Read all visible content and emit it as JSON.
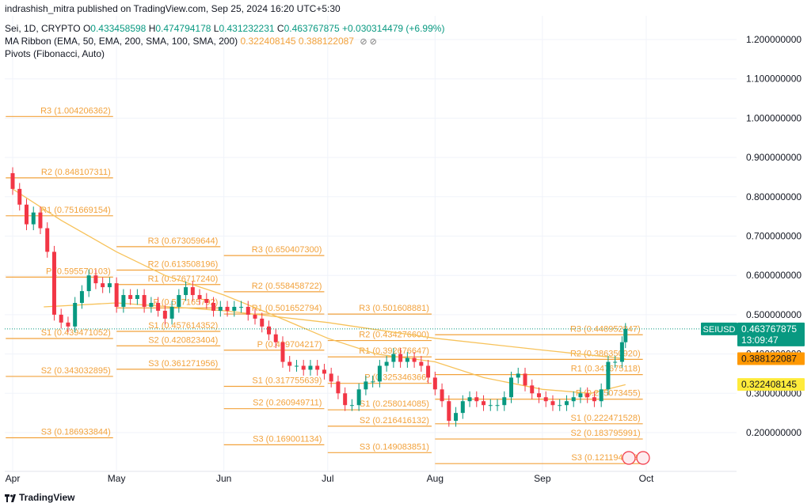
{
  "publisher_line": "indrashish_mitra published on TradingView.com, Sep 25, 2024 16:20 UTC+5:30",
  "legend": {
    "symbol_line": {
      "name": "Sei, 1D, CRYPTO",
      "o_label": "O",
      "o": "0.433458598",
      "h_label": "H",
      "h": "0.474794178",
      "l_label": "L",
      "l": "0.431232231",
      "c_label": "C",
      "c": "0.463767875",
      "change": "+0.030314479 (+6.99%)"
    },
    "ribbon_line": {
      "name": "MA Ribbon (EMA, 50, EMA, 200, SMA, 100, SMA, 200)",
      "v1": "0.322408145",
      "v2": "0.388122087",
      "eye": "⊘ ⊘"
    },
    "pivots_line": {
      "name": "Pivots (Fibonacci, Auto)"
    }
  },
  "footer": {
    "brand": "TradingView"
  },
  "colors": {
    "up": "#089981",
    "down": "#f23645",
    "pivot": "#f2a23c",
    "ma": "#f7c25a",
    "grid": "#f0f3fa",
    "axis_text": "#131722",
    "price_badge": "#089981",
    "badge_orange": "#ff9800",
    "badge_yellow": "#ffeb3b",
    "dotted": "#089981"
  },
  "chart_data": {
    "type": "candlestick",
    "title": "Sei, 1D, CRYPTO",
    "y_ticks": [
      {
        "v": 1.2,
        "label": "1.200000000"
      },
      {
        "v": 1.1,
        "label": "1.100000000"
      },
      {
        "v": 1.0,
        "label": "1.000000000"
      },
      {
        "v": 0.9,
        "label": "0.900000000"
      },
      {
        "v": 0.8,
        "label": "0.800000000"
      },
      {
        "v": 0.7,
        "label": "0.700000000"
      },
      {
        "v": 0.6,
        "label": "0.600000000"
      },
      {
        "v": 0.5,
        "label": "0.500000000"
      },
      {
        "v": 0.4,
        "label": "0.400000000"
      },
      {
        "v": 0.3,
        "label": "0.300000000"
      },
      {
        "v": 0.2,
        "label": "0.200000000"
      }
    ],
    "ylim": [
      0.1,
      1.3
    ],
    "x_ticks": [
      {
        "x": "2024-04-01",
        "label": "Apr"
      },
      {
        "x": "2024-05-01",
        "label": "May"
      },
      {
        "x": "2024-06-01",
        "label": "Jun"
      },
      {
        "x": "2024-07-01",
        "label": "Jul"
      },
      {
        "x": "2024-08-01",
        "label": "Aug"
      },
      {
        "x": "2024-09-01",
        "label": "Sep"
      },
      {
        "x": "2024-10-01",
        "label": "Oct"
      }
    ],
    "xlim": [
      "2024-03-30",
      "2024-10-10"
    ],
    "close_series": [
      [
        "2024-03-30",
        0.86
      ],
      [
        "2024-04-01",
        0.82
      ],
      [
        "2024-04-03",
        0.78
      ],
      [
        "2024-04-05",
        0.73
      ],
      [
        "2024-04-07",
        0.76
      ],
      [
        "2024-04-09",
        0.72
      ],
      [
        "2024-04-11",
        0.66
      ],
      [
        "2024-04-13",
        0.5
      ],
      [
        "2024-04-15",
        0.48
      ],
      [
        "2024-04-17",
        0.47
      ],
      [
        "2024-04-19",
        0.53
      ],
      [
        "2024-04-21",
        0.56
      ],
      [
        "2024-04-23",
        0.6
      ],
      [
        "2024-04-25",
        0.58
      ],
      [
        "2024-04-27",
        0.57
      ],
      [
        "2024-04-29",
        0.58
      ],
      [
        "2024-05-01",
        0.52
      ],
      [
        "2024-05-03",
        0.55
      ],
      [
        "2024-05-05",
        0.54
      ],
      [
        "2024-05-07",
        0.55
      ],
      [
        "2024-05-09",
        0.52
      ],
      [
        "2024-05-11",
        0.53
      ],
      [
        "2024-05-13",
        0.51
      ],
      [
        "2024-05-15",
        0.49
      ],
      [
        "2024-05-17",
        0.52
      ],
      [
        "2024-05-19",
        0.55
      ],
      [
        "2024-05-21",
        0.57
      ],
      [
        "2024-05-23",
        0.55
      ],
      [
        "2024-05-25",
        0.54
      ],
      [
        "2024-05-27",
        0.53
      ],
      [
        "2024-05-29",
        0.51
      ],
      [
        "2024-05-31",
        0.52
      ],
      [
        "2024-06-02",
        0.51
      ],
      [
        "2024-06-04",
        0.52
      ],
      [
        "2024-06-06",
        0.52
      ],
      [
        "2024-06-08",
        0.5
      ],
      [
        "2024-06-10",
        0.49
      ],
      [
        "2024-06-12",
        0.47
      ],
      [
        "2024-06-14",
        0.45
      ],
      [
        "2024-06-16",
        0.43
      ],
      [
        "2024-06-18",
        0.38
      ],
      [
        "2024-06-20",
        0.37
      ],
      [
        "2024-06-22",
        0.37
      ],
      [
        "2024-06-24",
        0.36
      ],
      [
        "2024-06-26",
        0.37
      ],
      [
        "2024-06-28",
        0.36
      ],
      [
        "2024-06-30",
        0.35
      ],
      [
        "2024-07-02",
        0.33
      ],
      [
        "2024-07-04",
        0.3
      ],
      [
        "2024-07-06",
        0.27
      ],
      [
        "2024-07-08",
        0.27
      ],
      [
        "2024-07-10",
        0.31
      ],
      [
        "2024-07-12",
        0.33
      ],
      [
        "2024-07-14",
        0.33
      ],
      [
        "2024-07-16",
        0.37
      ],
      [
        "2024-07-18",
        0.38
      ],
      [
        "2024-07-20",
        0.4
      ],
      [
        "2024-07-22",
        0.38
      ],
      [
        "2024-07-24",
        0.39
      ],
      [
        "2024-07-26",
        0.38
      ],
      [
        "2024-07-28",
        0.37
      ],
      [
        "2024-07-30",
        0.34
      ],
      [
        "2024-08-01",
        0.31
      ],
      [
        "2024-08-03",
        0.28
      ],
      [
        "2024-08-05",
        0.23
      ],
      [
        "2024-08-07",
        0.25
      ],
      [
        "2024-08-09",
        0.28
      ],
      [
        "2024-08-11",
        0.29
      ],
      [
        "2024-08-13",
        0.28
      ],
      [
        "2024-08-15",
        0.27
      ],
      [
        "2024-08-17",
        0.27
      ],
      [
        "2024-08-19",
        0.27
      ],
      [
        "2024-08-21",
        0.29
      ],
      [
        "2024-08-23",
        0.34
      ],
      [
        "2024-08-25",
        0.35
      ],
      [
        "2024-08-27",
        0.32
      ],
      [
        "2024-08-29",
        0.3
      ],
      [
        "2024-08-31",
        0.29
      ],
      [
        "2024-09-02",
        0.28
      ],
      [
        "2024-09-04",
        0.27
      ],
      [
        "2024-09-06",
        0.27
      ],
      [
        "2024-09-08",
        0.28
      ],
      [
        "2024-09-10",
        0.29
      ],
      [
        "2024-09-12",
        0.3
      ],
      [
        "2024-09-14",
        0.29
      ],
      [
        "2024-09-16",
        0.28
      ],
      [
        "2024-09-18",
        0.31
      ],
      [
        "2024-09-20",
        0.38
      ],
      [
        "2024-09-22",
        0.38
      ],
      [
        "2024-09-24",
        0.43
      ],
      [
        "2024-09-25",
        0.4637
      ]
    ],
    "ma_series": [
      {
        "name": "EMA 50",
        "points": [
          [
            "2024-04-01",
            0.82
          ],
          [
            "2024-04-15",
            0.74
          ],
          [
            "2024-05-01",
            0.66
          ],
          [
            "2024-05-15",
            0.6
          ],
          [
            "2024-06-01",
            0.55
          ],
          [
            "2024-06-15",
            0.5
          ],
          [
            "2024-07-01",
            0.44
          ],
          [
            "2024-07-15",
            0.4
          ],
          [
            "2024-08-01",
            0.38
          ],
          [
            "2024-08-15",
            0.34
          ],
          [
            "2024-09-01",
            0.31
          ],
          [
            "2024-09-15",
            0.3
          ],
          [
            "2024-09-25",
            0.322
          ]
        ]
      },
      {
        "name": "EMA 200",
        "points": [
          [
            "2024-04-10",
            0.52
          ],
          [
            "2024-05-01",
            0.53
          ],
          [
            "2024-06-01",
            0.51
          ],
          [
            "2024-07-01",
            0.48
          ],
          [
            "2024-08-01",
            0.44
          ],
          [
            "2024-09-01",
            0.41
          ],
          [
            "2024-09-25",
            0.388
          ]
        ]
      }
    ],
    "pivot_periods": [
      {
        "start": "2024-03-30",
        "end": "2024-04-30",
        "levels": [
          {
            "name": "R3",
            "value": 1.004206362,
            "label": "R3 (1.004206362)"
          },
          {
            "name": "R2",
            "value": 0.848107311,
            "label": "R2 (0.848107311)"
          },
          {
            "name": "R1",
            "value": 0.751669154,
            "label": "R1 (0.751669154)"
          },
          {
            "name": "P",
            "value": 0.595570103,
            "label": "P (0.595570103)"
          },
          {
            "name": "S1",
            "value": 0.439471052,
            "label": "S1 (0.439471052)"
          },
          {
            "name": "S2",
            "value": 0.343032895,
            "label": "S2 (0.343032895)"
          },
          {
            "name": "S3",
            "value": 0.186933844,
            "label": "S3 (0.186933844)"
          }
        ]
      },
      {
        "start": "2024-05-01",
        "end": "2024-05-31",
        "levels": [
          {
            "name": "R3",
            "value": 0.673059644,
            "label": "R3 (0.673059644)"
          },
          {
            "name": "R2",
            "value": 0.613508196,
            "label": "R2 (0.613508196)"
          },
          {
            "name": "R1",
            "value": 0.57671724,
            "label": "R1 (0.576717240)"
          },
          {
            "name": "P",
            "value": 0.517165792,
            "label": "P (0.517165792)"
          },
          {
            "name": "S1",
            "value": 0.457614352,
            "label": "S1 (0.457614352)"
          },
          {
            "name": "S2",
            "value": 0.420823404,
            "label": "S2 (0.420823404)"
          },
          {
            "name": "S3",
            "value": 0.361271956,
            "label": "S3 (0.361271956)"
          }
        ]
      },
      {
        "start": "2024-06-01",
        "end": "2024-06-30",
        "levels": [
          {
            "name": "R3",
            "value": 0.6504073,
            "label": "R3 (0.650407300)"
          },
          {
            "name": "R2",
            "value": 0.558458722,
            "label": "R2 (0.558458722)"
          },
          {
            "name": "R1",
            "value": 0.501652794,
            "label": "R1 (0.501652794)"
          },
          {
            "name": "P",
            "value": 0.409704217,
            "label": "P (0.409704217)"
          },
          {
            "name": "S1",
            "value": 0.317755639,
            "label": "S1 (0.317755639)"
          },
          {
            "name": "S2",
            "value": 0.260949711,
            "label": "S2 (0.260949711)"
          },
          {
            "name": "S3",
            "value": 0.169001134,
            "label": "S3 (0.169001134)"
          }
        ]
      },
      {
        "start": "2024-07-01",
        "end": "2024-07-31",
        "levels": [
          {
            "name": "R3",
            "value": 0.501608881,
            "label": "R3 (0.501608881)"
          },
          {
            "name": "R2",
            "value": 0.4342766,
            "label": "R2 (0.434276600)"
          },
          {
            "name": "R1",
            "value": 0.392676647,
            "label": "R1 (0.392676647)"
          },
          {
            "name": "P",
            "value": 0.325346366,
            "label": "P (0.325346366)"
          },
          {
            "name": "S1",
            "value": 0.258014085,
            "label": "S1 (0.258014085)"
          },
          {
            "name": "S2",
            "value": 0.216416132,
            "label": "S2 (0.216416132)"
          },
          {
            "name": "S3",
            "value": 0.149083851,
            "label": "S3 (0.149083851)"
          }
        ]
      },
      {
        "start": "2024-08-01",
        "end": "2024-09-30",
        "levels": [
          {
            "name": "R3",
            "value": 0.448952847,
            "label": "R3 (0.448952847)"
          },
          {
            "name": "R2",
            "value": 0.38635092,
            "label": "R2 (0.386350920)"
          },
          {
            "name": "R1",
            "value": 0.347675118,
            "label": "R1 (0.347675118)"
          },
          {
            "name": "P",
            "value": 0.285073455,
            "label": "P (0.285073455)"
          },
          {
            "name": "S1",
            "value": 0.222471528,
            "label": "S1 (0.222471528)"
          },
          {
            "name": "S2",
            "value": 0.183795991,
            "label": "S2 (0.183795991)"
          },
          {
            "name": "S3",
            "value": 0.121194063,
            "label": "S3 (0.121194063)"
          }
        ]
      }
    ],
    "price_badges": [
      {
        "kind": "last",
        "symbol": "SEIUSD",
        "value": 0.463767875,
        "label": "0.463767875",
        "countdown": "13:09:47"
      },
      {
        "kind": "ma200",
        "value": 0.388122087,
        "label": "0.388122087"
      },
      {
        "kind": "ma50",
        "value": 0.322408145,
        "label": "0.322408145"
      }
    ]
  }
}
